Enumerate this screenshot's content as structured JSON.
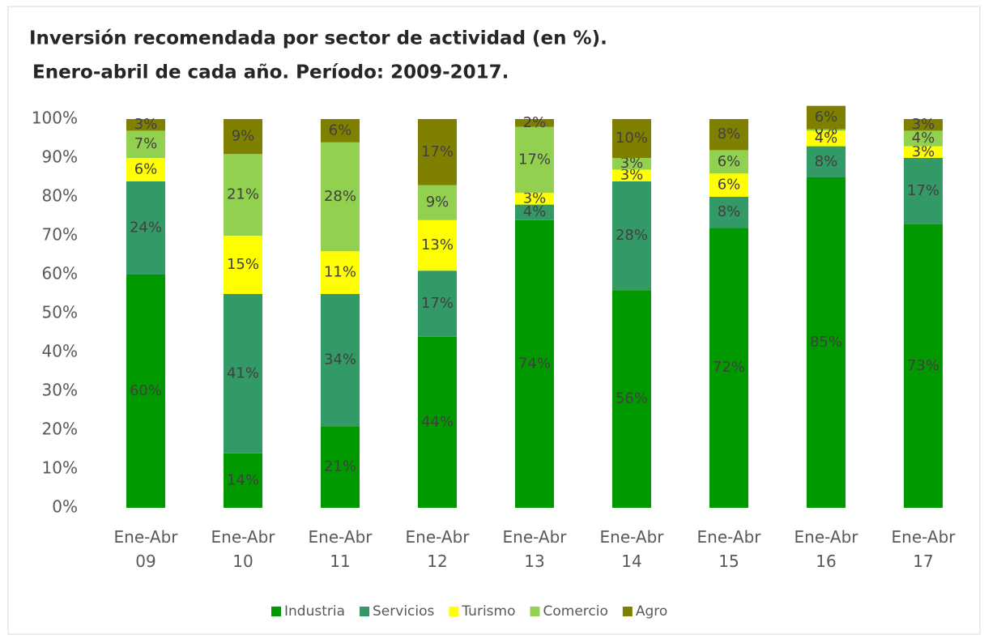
{
  "chart_data": {
    "type": "bar",
    "stacked": true,
    "title": "Inversión recomendada por sector de actividad (en %).",
    "subtitle": "Enero-abril de cada año. Período: 2009-2017.",
    "categories": [
      "Ene-Abr 09",
      "Ene-Abr 10",
      "Ene-Abr 11",
      "Ene-Abr 12",
      "Ene-Abr 13",
      "Ene-Abr 14",
      "Ene-Abr 15",
      "Ene-Abr 16",
      "Ene-Abr 17"
    ],
    "series": [
      {
        "name": "Industria",
        "color": "#009900",
        "values": [
          60,
          14,
          21,
          44,
          74,
          56,
          72,
          85,
          73
        ],
        "value_labels": [
          "60%",
          "14%",
          "21%",
          "44%",
          "74%",
          "56%",
          "72%",
          "85%",
          "73%"
        ]
      },
      {
        "name": "Servicios",
        "color": "#339966",
        "values": [
          24,
          41,
          34,
          17,
          4,
          28,
          8,
          8,
          17
        ],
        "value_labels": [
          "24%",
          "41%",
          "34%",
          "17%",
          "4%",
          "28%",
          "8%",
          "8%",
          "17%"
        ]
      },
      {
        "name": "Turismo",
        "color": "#ffff00",
        "values": [
          6,
          15,
          11,
          13,
          3,
          3,
          6,
          4,
          3
        ],
        "value_labels": [
          "6%",
          "15%",
          "11%",
          "13%",
          "3%",
          "3%",
          "6%",
          "4%",
          "3%"
        ]
      },
      {
        "name": "Comercio",
        "color": "#92d050",
        "values": [
          7,
          21,
          28,
          9,
          17,
          3,
          6,
          0.4,
          4
        ],
        "value_labels": [
          "7%",
          "21%",
          "28%",
          "9%",
          "17%",
          "3%",
          "6%",
          "0%",
          "4%"
        ]
      },
      {
        "name": "Agro",
        "color": "#808000",
        "values": [
          3,
          9,
          6,
          17,
          2,
          10,
          8,
          6,
          3
        ],
        "value_labels": [
          "3%",
          "9%",
          "6%",
          "17%",
          "2%",
          "10%",
          "8%",
          "6%",
          "3%"
        ]
      }
    ],
    "ylim": [
      0,
      100
    ],
    "yticks": [
      {
        "value": 0,
        "label": "0%"
      },
      {
        "value": 10,
        "label": "10%"
      },
      {
        "value": 20,
        "label": "20%"
      },
      {
        "value": 30,
        "label": "30%"
      },
      {
        "value": 40,
        "label": "40%"
      },
      {
        "value": 50,
        "label": "50%"
      },
      {
        "value": 60,
        "label": "60%"
      },
      {
        "value": 70,
        "label": "70%"
      },
      {
        "value": 80,
        "label": "80%"
      },
      {
        "value": 90,
        "label": "90%"
      },
      {
        "value": 100,
        "label": "100%"
      }
    ],
    "grid": false,
    "legend": "bottom"
  }
}
